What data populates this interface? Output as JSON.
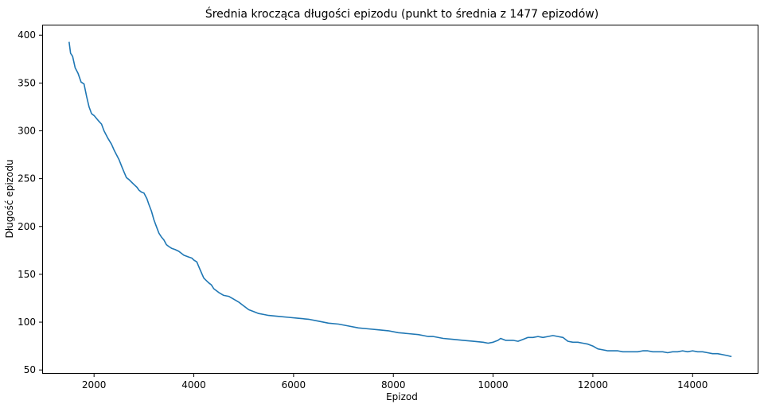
{
  "chart_data": {
    "type": "line",
    "title": "Średnia krocząca długości epizodu (punkt to średnia z 1477 epizodów)",
    "xlabel": "Epizod",
    "ylabel": "Długość epizodu",
    "xlim": [
      960,
      15320
    ],
    "ylim": [
      46,
      411
    ],
    "xticks": [
      2000,
      4000,
      6000,
      8000,
      10000,
      12000,
      14000
    ],
    "yticks": [
      50,
      100,
      150,
      200,
      250,
      300,
      350,
      400
    ],
    "grid": false,
    "line_color": "#1f77b4",
    "series": [
      {
        "x": [
          1500,
          1530,
          1570,
          1620,
          1680,
          1740,
          1800,
          1850,
          1900,
          1950,
          2000,
          2080,
          2150,
          2200,
          2280,
          2350,
          2400,
          2450,
          2500,
          2560,
          2600,
          2650,
          2700,
          2760,
          2800,
          2860,
          2900,
          2950,
          3000,
          3060,
          3100,
          3150,
          3200,
          3250,
          3300,
          3350,
          3400,
          3450,
          3500,
          3560,
          3620,
          3700,
          3800,
          3900,
          3960,
          4000,
          4060,
          4100,
          4150,
          4200,
          4260,
          4300,
          4350,
          4400,
          4500,
          4600,
          4700,
          4800,
          4900,
          5000,
          5100,
          5200,
          5300,
          5400,
          5500,
          5700,
          5900,
          6100,
          6300,
          6500,
          6700,
          6900,
          7100,
          7300,
          7500,
          7700,
          7900,
          8100,
          8300,
          8500,
          8600,
          8700,
          8800,
          9000,
          9200,
          9400,
          9600,
          9800,
          9900,
          10000,
          10100,
          10150,
          10250,
          10400,
          10500,
          10600,
          10700,
          10800,
          10900,
          11000,
          11100,
          11200,
          11300,
          11400,
          11500,
          11600,
          11700,
          11800,
          11900,
          12000,
          12100,
          12200,
          12300,
          12400,
          12500,
          12600,
          12700,
          12800,
          12900,
          13000,
          13100,
          13200,
          13300,
          13400,
          13500,
          13600,
          13700,
          13800,
          13900,
          14000,
          14100,
          14200,
          14300,
          14400,
          14500,
          14600,
          14700,
          14780
        ],
        "values": [
          393,
          381,
          378,
          366,
          360,
          351,
          349,
          336,
          325,
          318,
          316,
          311,
          307,
          300,
          292,
          286,
          280,
          275,
          270,
          262,
          257,
          251,
          249,
          246,
          244,
          241,
          238,
          236,
          235,
          229,
          223,
          216,
          207,
          200,
          193,
          189,
          186,
          181,
          179,
          177,
          176,
          174,
          170,
          168,
          167,
          165,
          163,
          158,
          152,
          146,
          143,
          141,
          139,
          135,
          131,
          128,
          127,
          124,
          121,
          117,
          113,
          111,
          109,
          108,
          107,
          106,
          105,
          104,
          103,
          101,
          99,
          98,
          96,
          94,
          93,
          92,
          91,
          89,
          88,
          87,
          86,
          85,
          85,
          83,
          82,
          81,
          80,
          79,
          78,
          79,
          81,
          83,
          81,
          81,
          80,
          82,
          84,
          84,
          85,
          84,
          85,
          86,
          85,
          84,
          80,
          79,
          79,
          78,
          77,
          75,
          72,
          71,
          70,
          70,
          70,
          69,
          69,
          69,
          69,
          70,
          70,
          69,
          69,
          69,
          68,
          69,
          69,
          70,
          69,
          70,
          69,
          69,
          68,
          67,
          67,
          66,
          65,
          64
        ]
      }
    ]
  }
}
